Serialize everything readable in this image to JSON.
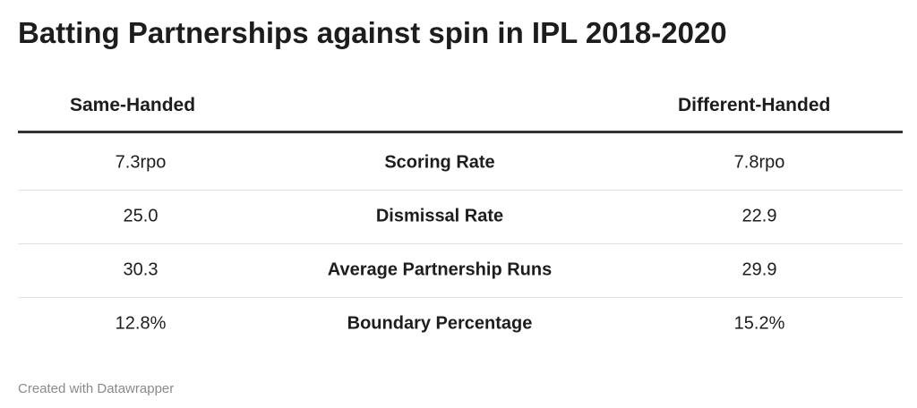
{
  "header": {
    "title": "Batting Partnerships against spin in IPL 2018-2020"
  },
  "table": {
    "columns": {
      "left": "Same-Handed",
      "right": "Different-Handed"
    },
    "rows": [
      [
        "7.3rpo",
        "Scoring Rate",
        "7.8rpo"
      ],
      [
        "25.0",
        "Dismissal Rate",
        "22.9"
      ],
      [
        "30.3",
        "Average Partnership Runs",
        "29.9"
      ],
      [
        "12.8%",
        "Boundary Percentage",
        "15.2%"
      ]
    ]
  },
  "footer": {
    "credit": "Created with Datawrapper"
  }
}
